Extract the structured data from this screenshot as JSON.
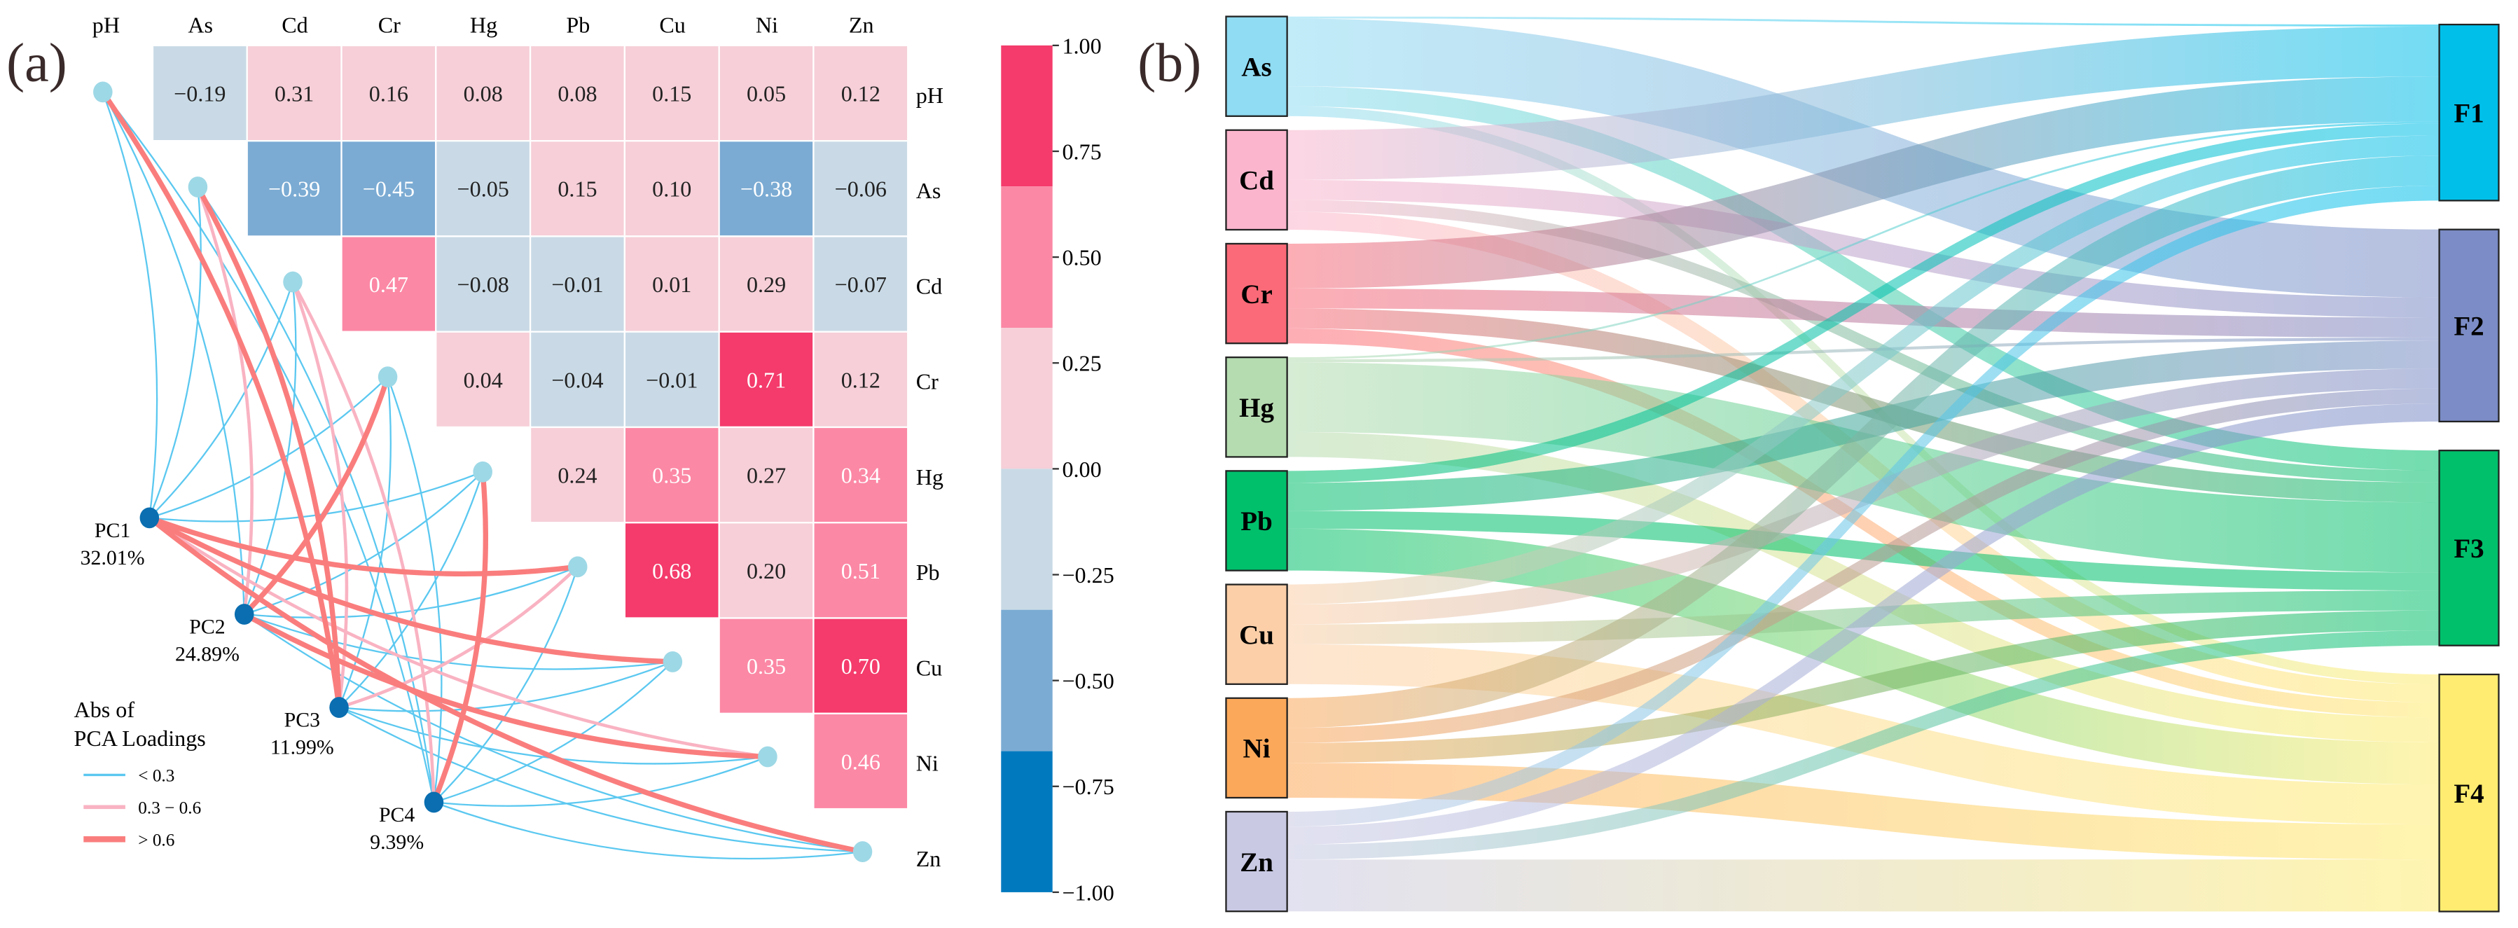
{
  "panel_a_label": "(a)",
  "panel_b_label": "(b)",
  "chart_data": [
    {
      "type": "heatmap",
      "title": "Correlation matrix with PCA loadings network",
      "variables": [
        "pH",
        "As",
        "Cd",
        "Cr",
        "Hg",
        "Pb",
        "Cu",
        "Ni",
        "Zn"
      ],
      "row_labels": [
        "pH",
        "As",
        "Cd",
        "Cr",
        "Hg",
        "Pb",
        "Cu",
        "Ni",
        "Zn"
      ],
      "matrix_upper": [
        [
          "-0.19",
          "0.31",
          "0.16",
          "0.08",
          "0.08",
          "0.15",
          "0.05",
          "0.12"
        ],
        [
          "-0.39",
          "-0.45",
          "-0.05",
          "0.15",
          "0.10",
          "-0.38",
          "-0.06"
        ],
        [
          "0.47",
          "-0.08",
          "-0.01",
          "0.01",
          "0.29",
          "-0.07"
        ],
        [
          "0.04",
          "-0.04",
          "-0.01",
          "0.71",
          "0.12"
        ],
        [
          "0.24",
          "0.35",
          "0.27",
          "0.34"
        ],
        [
          "0.68",
          "0.20",
          "0.51"
        ],
        [
          "0.35",
          "0.70"
        ],
        [
          "0.46"
        ]
      ],
      "colorbar": {
        "range": [
          -1,
          1
        ],
        "ticks": [
          "1.00",
          "0.75",
          "0.50",
          "0.25",
          "0.00",
          "−0.25",
          "−0.50",
          "−0.75",
          "−1.00"
        ],
        "bins": [
          {
            "min": 0.667,
            "max": 1,
            "color": "#f43b6b"
          },
          {
            "min": 0.333,
            "max": 0.667,
            "color": "#fb88a5"
          },
          {
            "min": 0,
            "max": 0.333,
            "color": "#f6cfd8"
          },
          {
            "min": -0.333,
            "max": 0,
            "color": "#c9dae6"
          },
          {
            "min": -0.667,
            "max": -0.333,
            "color": "#7babd3"
          },
          {
            "min": -1,
            "max": -0.667,
            "color": "#0079bf"
          }
        ]
      },
      "pcs": [
        {
          "name": "PC1",
          "variance": "32.01%"
        },
        {
          "name": "PC2",
          "variance": "24.89%"
        },
        {
          "name": "PC3",
          "variance": "11.99%"
        },
        {
          "name": "PC4",
          "variance": "9.39%"
        }
      ],
      "loading_edges": {
        "PC1": {
          "pH": "low",
          "As": "low",
          "Cd": "low",
          "Cr": "low",
          "Hg": "low",
          "Pb": "high",
          "Cu": "high",
          "Ni": "mid",
          "Zn": "high"
        },
        "PC2": {
          "pH": "low",
          "As": "mid",
          "Cd": "low",
          "Cr": "high",
          "Hg": "low",
          "Pb": "low",
          "Cu": "low",
          "Ni": "high",
          "Zn": "low"
        },
        "PC3": {
          "pH": "high",
          "As": "high",
          "Cd": "mid",
          "Cr": "low",
          "Hg": "low",
          "Pb": "mid",
          "Cu": "low",
          "Ni": "low",
          "Zn": "low"
        },
        "PC4": {
          "pH": "low",
          "As": "low",
          "Cd": "mid",
          "Cr": "low",
          "Hg": "high",
          "Pb": "low",
          "Cu": "low",
          "Ni": "low",
          "Zn": "low"
        }
      },
      "legend": {
        "title_line1": "Abs of",
        "title_line2": "PCA Loadings",
        "items": [
          {
            "key": "low",
            "label": "< 0.3",
            "color": "#5bc8f0"
          },
          {
            "key": "mid",
            "label": "0.3 − 0.6",
            "color": "#f9b3c2"
          },
          {
            "key": "high",
            "label": "> 0.6",
            "color": "#fa7d7d"
          }
        ]
      },
      "node_colors": {
        "variable": "#9dd8e6",
        "pc": "#0a6eb0"
      }
    },
    {
      "type": "sankey",
      "sources": [
        {
          "name": "As",
          "color": "#8fdcf3"
        },
        {
          "name": "Cd",
          "color": "#fbb5cd"
        },
        {
          "name": "Cr",
          "color": "#fb6a78"
        },
        {
          "name": "Hg",
          "color": "#b5dcb0"
        },
        {
          "name": "Pb",
          "color": "#00c06c"
        },
        {
          "name": "Cu",
          "color": "#fccfa8"
        },
        {
          "name": "Ni",
          "color": "#fca85a"
        },
        {
          "name": "Zn",
          "color": "#c9c9e4"
        }
      ],
      "targets": [
        {
          "name": "F1",
          "color": "#00c0ea"
        },
        {
          "name": "F2",
          "color": "#7b8cc6"
        },
        {
          "name": "F3",
          "color": "#00c06c"
        },
        {
          "name": "F4",
          "color": "#ffec70"
        }
      ],
      "flows": [
        [
          0.02,
          0.68,
          0.2,
          0.1
        ],
        [
          0.5,
          0.2,
          0.12,
          0.18
        ],
        [
          0.45,
          0.2,
          0.2,
          0.15
        ],
        [
          0.02,
          0.03,
          0.7,
          0.25
        ],
        [
          0.12,
          0.28,
          0.18,
          0.42
        ],
        [
          0.2,
          0.2,
          0.2,
          0.4
        ],
        [
          0.3,
          0.15,
          0.2,
          0.35
        ],
        [
          0.15,
          0.18,
          0.15,
          0.52
        ]
      ]
    }
  ]
}
